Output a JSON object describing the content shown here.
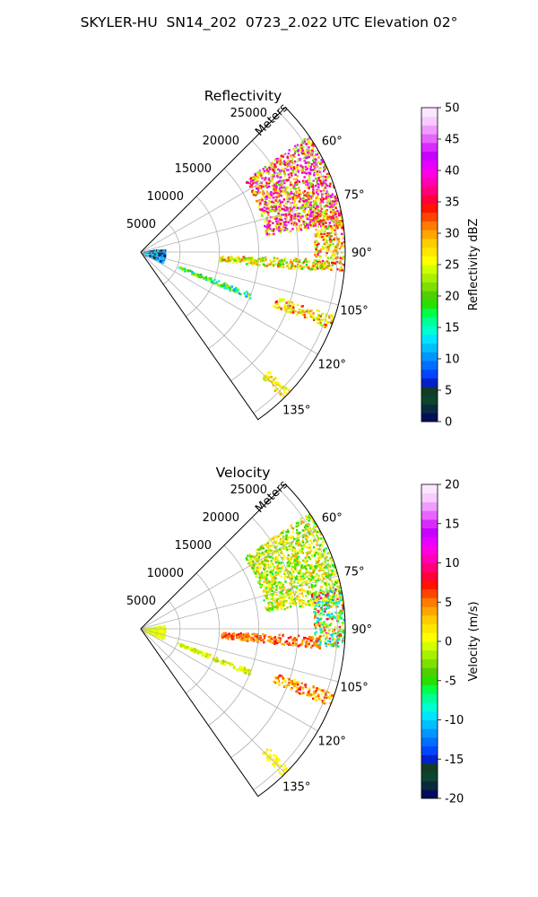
{
  "suptitle": "SKYLER-HU  SN14_202  0723_2.022 UTC Elevation 02°",
  "chart_data": [
    {
      "type": "heatmap",
      "subtype": "polar-sector (PPI radar scan)",
      "title": "Reflectivity",
      "range_axis_label": "Meters",
      "range_ticks": [
        5000,
        10000,
        15000,
        20000,
        25000
      ],
      "range_lim": [
        0,
        26000
      ],
      "angle_ticks": [
        "60°",
        "75°",
        "90°",
        "105°",
        "120°",
        "135°"
      ],
      "angle_ticks_deg": [
        60,
        75,
        90,
        105,
        120,
        135
      ],
      "angle_lim_deg": [
        45,
        145
      ],
      "grid": true,
      "colorbar": {
        "label": "Reflectivity dBZ",
        "min": 0,
        "max": 50,
        "ticks": [
          0,
          5,
          10,
          15,
          20,
          25,
          30,
          35,
          40,
          45,
          50
        ],
        "colors": [
          "#000f5a",
          "#0a2a3c",
          "#0c4430",
          "#123c24",
          "#0022c8",
          "#0046ff",
          "#006eff",
          "#0096ff",
          "#00bfff",
          "#00e5ff",
          "#00ffd2",
          "#00ff96",
          "#00ff46",
          "#28e000",
          "#50d000",
          "#7ee000",
          "#a8f000",
          "#d2ff00",
          "#ffff00",
          "#ffe600",
          "#ffcc00",
          "#ffa500",
          "#ff7c00",
          "#ff4600",
          "#ff1400",
          "#ff003c",
          "#ff0078",
          "#ff00b4",
          "#ff00e6",
          "#e600ff",
          "#c800ff",
          "#d82cff",
          "#e864ff",
          "#f09cff",
          "#f8ccff",
          "#fce6ff"
        ]
      },
      "features": [
        {
          "name": "storm core",
          "range_m": [
            16000,
            26000
          ],
          "azimuth_deg": [
            55,
            82
          ],
          "dbz": [
            20,
            45
          ]
        },
        {
          "name": "storm edge",
          "range_m": [
            22000,
            26000
          ],
          "azimuth_deg": [
            78,
            95
          ],
          "dbz": [
            20,
            37
          ]
        },
        {
          "name": "near clutter",
          "range_m": [
            0,
            3000
          ],
          "azimuth_deg": [
            80,
            115
          ],
          "dbz": [
            0,
            15
          ]
        },
        {
          "name": "radial line 1",
          "range_m": [
            10000,
            23000
          ],
          "azimuth_deg": [
            92,
            96
          ],
          "dbz": [
            18,
            33
          ]
        },
        {
          "name": "radial line 2",
          "range_m": [
            5000,
            15000
          ],
          "azimuth_deg": [
            110,
            113
          ],
          "dbz": [
            10,
            25
          ]
        },
        {
          "name": "radial line 3",
          "range_m": [
            18000,
            26000
          ],
          "azimuth_deg": [
            108,
            112
          ],
          "dbz": [
            22,
            35
          ]
        },
        {
          "name": "far cell",
          "range_m": [
            22000,
            26000
          ],
          "azimuth_deg": [
            133,
            136
          ],
          "dbz": [
            22,
            30
          ]
        }
      ]
    },
    {
      "type": "heatmap",
      "subtype": "polar-sector (PPI radar scan)",
      "title": "Velocity",
      "range_axis_label": "Meters",
      "range_ticks": [
        5000,
        10000,
        15000,
        20000,
        25000
      ],
      "range_lim": [
        0,
        26000
      ],
      "angle_ticks": [
        "60°",
        "75°",
        "90°",
        "105°",
        "120°",
        "135°"
      ],
      "angle_ticks_deg": [
        60,
        75,
        90,
        105,
        120,
        135
      ],
      "angle_lim_deg": [
        45,
        145
      ],
      "grid": true,
      "colorbar": {
        "label": "Velocity (m/s)",
        "min": -20,
        "max": 20,
        "ticks": [
          -20,
          -15,
          -10,
          -5,
          0,
          5,
          10,
          15,
          20
        ],
        "colors": [
          "#000f5a",
          "#0a2a3c",
          "#0c4430",
          "#123c24",
          "#0022c8",
          "#0046ff",
          "#006eff",
          "#0096ff",
          "#00bfff",
          "#00e5ff",
          "#00ffd2",
          "#00ff96",
          "#00ff46",
          "#28e000",
          "#50d000",
          "#7ee000",
          "#a8f000",
          "#d2ff00",
          "#ffff00",
          "#ffe600",
          "#ffcc00",
          "#ffa500",
          "#ff7c00",
          "#ff4600",
          "#ff1400",
          "#ff003c",
          "#ff0078",
          "#ff00b4",
          "#ff00e6",
          "#e600ff",
          "#c800ff",
          "#d82cff",
          "#e864ff",
          "#f09cff",
          "#f8ccff",
          "#fce6ff"
        ]
      },
      "features": [
        {
          "name": "storm core",
          "range_m": [
            16000,
            26000
          ],
          "azimuth_deg": [
            55,
            82
          ],
          "vel": [
            -6,
            4
          ]
        },
        {
          "name": "storm edge",
          "range_m": [
            22000,
            26000
          ],
          "azimuth_deg": [
            78,
            95
          ],
          "vel": [
            -12,
            11
          ]
        },
        {
          "name": "near clutter",
          "range_m": [
            0,
            3000
          ],
          "azimuth_deg": [
            80,
            115
          ],
          "vel": [
            -1,
            1
          ]
        },
        {
          "name": "radial line 1",
          "range_m": [
            10000,
            23000
          ],
          "azimuth_deg": [
            92,
            96
          ],
          "vel": [
            3,
            8
          ]
        },
        {
          "name": "radial line 2",
          "range_m": [
            5000,
            15000
          ],
          "azimuth_deg": [
            110,
            113
          ],
          "vel": [
            -3,
            3
          ]
        },
        {
          "name": "radial line 3",
          "range_m": [
            18000,
            26000
          ],
          "azimuth_deg": [
            108,
            112
          ],
          "vel": [
            0,
            8
          ]
        },
        {
          "name": "far cell",
          "range_m": [
            22000,
            26000
          ],
          "azimuth_deg": [
            133,
            136
          ],
          "vel": [
            0,
            2
          ]
        }
      ]
    }
  ]
}
